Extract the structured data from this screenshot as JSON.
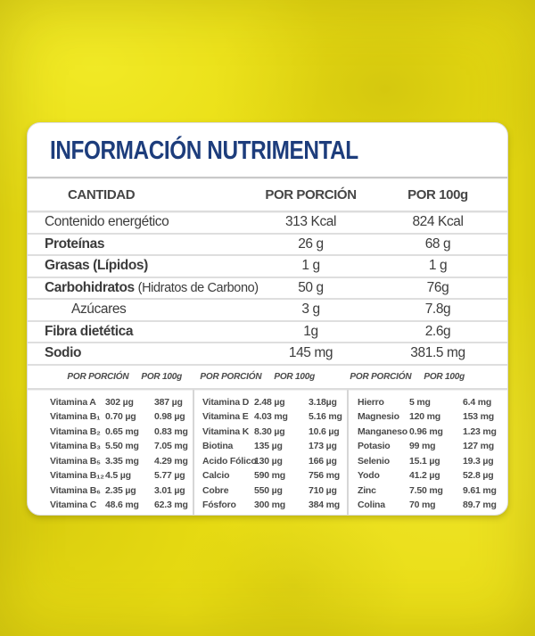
{
  "title": "INFORMACIÓN NUTRIMENTAL",
  "colors": {
    "background_yellow": "#e8dc12",
    "title_navy": "#1d3d7c",
    "text_gray": "#3c3c3c",
    "divider_gray": "#c9c9c9",
    "card_white": "#ffffff"
  },
  "main_table": {
    "headers": {
      "label": "CANTIDAD",
      "portion": "POR PORCIÓN",
      "per100g": "POR 100g"
    },
    "rows": [
      {
        "label": "Contenido energético",
        "portion": "313 Kcal",
        "per100g": "824 Kcal"
      },
      {
        "label": "Proteínas",
        "portion": "26 g",
        "per100g": "68 g"
      },
      {
        "label": "Grasas (Lípidos)",
        "portion": "1 g",
        "per100g": "1 g"
      },
      {
        "label": "Carbohidratos",
        "note": "(Hidratos de Carbono)",
        "portion": "50 g",
        "per100g": "76g"
      },
      {
        "label": "Azúcares",
        "portion": "3 g",
        "per100g": "7.8g"
      },
      {
        "label": "Fibra dietética",
        "portion": "1g",
        "per100g": "2.6g"
      },
      {
        "label": "Sodio",
        "portion": "145 mg",
        "per100g": "381.5 mg"
      }
    ]
  },
  "micro_table": {
    "portion_header": "POR PORCIÓN",
    "per100g_header": "POR 100g",
    "columns": [
      {
        "rows": [
          {
            "label": "Vitamina A",
            "portion": "302 µg",
            "per100g": "387 µg"
          },
          {
            "label": "Vitamina B₁",
            "portion": "0.70 µg",
            "per100g": "0.98 µg"
          },
          {
            "label": "Vitamina B₂",
            "portion": "0.65 mg",
            "per100g": "0.83 mg"
          },
          {
            "label": "Vitamina B₃",
            "portion": "5.50 mg",
            "per100g": "7.05 mg"
          },
          {
            "label": "Vitamina B₅",
            "portion": "3.35 mg",
            "per100g": "4.29 mg"
          },
          {
            "label": "Vitamina B₁₂",
            "portion": "4.5 µg",
            "per100g": "5.77 µg"
          },
          {
            "label": "Vitamina B₆",
            "portion": "2.35 µg",
            "per100g": "3.01 µg"
          },
          {
            "label": "Vitamina C",
            "portion": "48.6 mg",
            "per100g": "62.3 mg"
          }
        ]
      },
      {
        "rows": [
          {
            "label": "Vitamina D",
            "portion": "2.48 µg",
            "per100g": "3.18µg"
          },
          {
            "label": "Vitamina E",
            "portion": "4.03 mg",
            "per100g": "5.16 mg"
          },
          {
            "label": "Vitamina K",
            "portion": "8.30 µg",
            "per100g": "10.6 µg"
          },
          {
            "label": "Biotina",
            "portion": "135 µg",
            "per100g": "173 µg"
          },
          {
            "label": "Acido Fólico",
            "portion": "130 µg",
            "per100g": "166 µg"
          },
          {
            "label": "Calcio",
            "portion": "590 mg",
            "per100g": "756 mg"
          },
          {
            "label": "Cobre",
            "portion": "550 µg",
            "per100g": "710 µg"
          },
          {
            "label": "Fósforo",
            "portion": "300 mg",
            "per100g": "384 mg"
          }
        ]
      },
      {
        "rows": [
          {
            "label": "Hierro",
            "portion": "5 mg",
            "per100g": "6.4 mg"
          },
          {
            "label": "Magnesio",
            "portion": "120 mg",
            "per100g": "153 mg"
          },
          {
            "label": "Manganeso",
            "portion": "0.96 mg",
            "per100g": "1.23 mg"
          },
          {
            "label": "Potasio",
            "portion": "99 mg",
            "per100g": "127 mg"
          },
          {
            "label": "Selenio",
            "portion": "15.1 µg",
            "per100g": "19.3 µg"
          },
          {
            "label": "Yodo",
            "portion": "41.2 µg",
            "per100g": "52.8 µg"
          },
          {
            "label": "Zinc",
            "portion": "7.50 mg",
            "per100g": "9.61 mg"
          },
          {
            "label": "Colina",
            "portion": "70 mg",
            "per100g": "89.7 mg"
          }
        ]
      }
    ]
  }
}
